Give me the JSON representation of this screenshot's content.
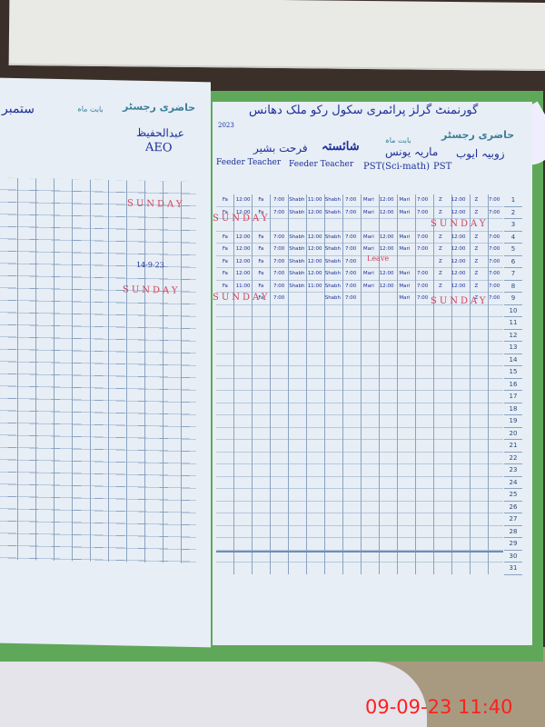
{
  "register": {
    "title_printed": "حاضری رجسٹر",
    "month_label_printed": "بابت ماہ",
    "school_name": "گورنمنٹ گرلز پرائمری سکول رکو ملک دھانس",
    "year": "2023",
    "month": "ستمبر",
    "left_page": {
      "officer_name": "عبدالحفیظ",
      "officer_designation": "AEO",
      "sunday_labels": [
        "SUNDAY",
        "SUNDAY"
      ],
      "signature_note": "14-9-23"
    },
    "teachers": [
      {
        "name": "فرحت بشیر",
        "designation": "Feeder Teacher"
      },
      {
        "name": "شائستہ",
        "designation": "Feeder Teacher"
      },
      {
        "name": "ماریہ یونس",
        "designation": "PST(Sci-math)"
      },
      {
        "name": "زوبیہ ایوب",
        "designation": "PST"
      }
    ],
    "days": [
      "1",
      "2",
      "3",
      "4",
      "5",
      "6",
      "7",
      "8",
      "9",
      "10",
      "11",
      "12",
      "13",
      "14",
      "15",
      "16",
      "17",
      "18",
      "19",
      "20",
      "21",
      "22",
      "23",
      "24",
      "25",
      "26",
      "27",
      "28",
      "29",
      "30",
      "31"
    ],
    "rows": [
      {
        "day": "1",
        "cells": [
          "Fa",
          "12:00",
          "Fa",
          "7:00",
          "Shabh",
          "11:00",
          "Shabh",
          "7:00",
          "Mari",
          "12:00",
          "Mari",
          "7:00",
          "Z",
          "12:00",
          "Z",
          "7:00"
        ]
      },
      {
        "day": "2",
        "cells": [
          "Fa",
          "12:00",
          "Fa",
          "7:00",
          "Shabh",
          "12:00",
          "Shabh",
          "7:00",
          "Mari",
          "12:00",
          "Mari",
          "7:00",
          "Z",
          "12:00",
          "Z",
          "7:00"
        ]
      },
      {
        "day": "4",
        "cells": [
          "Fa",
          "12:00",
          "Fa",
          "7:00",
          "Shabh",
          "12:00",
          "Shabh",
          "7:00",
          "Mari",
          "12:00",
          "Mari",
          "7:00",
          "Z",
          "12:00",
          "Z",
          "7:00"
        ]
      },
      {
        "day": "5",
        "cells": [
          "Fa",
          "12:00",
          "Fa",
          "7:00",
          "Shabh",
          "12:00",
          "Shabh",
          "7:00",
          "Mari",
          "12:00",
          "Mari",
          "7:00",
          "Z",
          "12:00",
          "Z",
          "7:00"
        ]
      },
      {
        "day": "6",
        "cells": [
          "Fa",
          "12:00",
          "Fa",
          "7:00",
          "Shabh",
          "12:00",
          "Shabh",
          "7:00",
          "",
          "",
          "",
          "",
          "Z",
          "12:00",
          "Z",
          "7:00"
        ]
      },
      {
        "day": "7",
        "cells": [
          "Fa",
          "12:00",
          "Fa",
          "7:00",
          "Shabh",
          "12:00",
          "Shabh",
          "7:00",
          "Mari",
          "12:00",
          "Mari",
          "7:00",
          "Z",
          "12:00",
          "Z",
          "7:00"
        ]
      },
      {
        "day": "8",
        "cells": [
          "Fa",
          "11:00",
          "Fa",
          "7:00",
          "Shabh",
          "11:00",
          "Shabh",
          "7:00",
          "Mari",
          "12:00",
          "Mari",
          "7:00",
          "Z",
          "12:00",
          "Z",
          "7:00"
        ]
      },
      {
        "day": "9",
        "cells": [
          "",
          "",
          "Fa",
          "7:00",
          "",
          "",
          "Shabh",
          "7:00",
          "",
          "",
          "Mari",
          "7:00",
          "",
          "",
          "Z",
          "7:00"
        ]
      }
    ],
    "sunday_labels": [
      "SUNDAY",
      "SUNDAY",
      "SUNDAY",
      "SUNDAY"
    ],
    "leave_label": "Leave"
  },
  "timestamp": "09-09-23  11:40",
  "colors": {
    "ink_blue": "#1d2f9a",
    "ink_red": "#d2405a",
    "stamp_red": "#ff1f1f",
    "cover_green": "#5fa85a"
  }
}
